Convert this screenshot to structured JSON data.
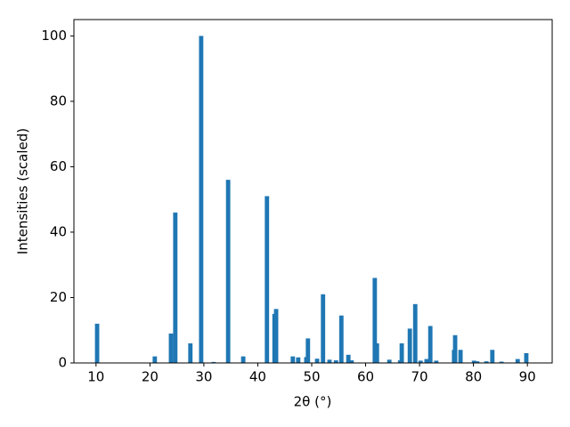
{
  "chart_data": {
    "type": "bar",
    "x_label": "2θ (°)",
    "y_label": "Intensities (scaled)",
    "color": "#1f77b4",
    "x": [
      10.2,
      20.9,
      23.9,
      24.7,
      27.5,
      29.5,
      31.8,
      34.5,
      37.3,
      41.7,
      43.1,
      43.4,
      46.5,
      47.5,
      49.0,
      49.3,
      51.0,
      52.1,
      53.3,
      54.5,
      55.5,
      56.8,
      57.4,
      61.7,
      62.1,
      64.4,
      66.4,
      66.7,
      68.2,
      69.2,
      70.2,
      71.3,
      72.0,
      73.1,
      76.4,
      76.6,
      77.6,
      80.1,
      80.7,
      82.4,
      83.5,
      85.2,
      88.2,
      89.8
    ],
    "values": [
      12,
      2,
      9,
      46,
      6,
      100,
      0.3,
      56,
      2,
      51,
      15,
      16.5,
      2,
      1.7,
      1.8,
      7.5,
      1.3,
      21,
      1,
      0.8,
      14.5,
      2.5,
      0.8,
      26,
      6,
      1,
      0.8,
      6,
      10.5,
      18,
      0.7,
      1.2,
      11.3,
      0.7,
      4,
      8.5,
      4,
      0.7,
      0.5,
      0.5,
      4,
      0.4,
      1.2,
      3
    ],
    "xlim": [
      5.9,
      94.6
    ],
    "ylim": [
      0,
      105
    ],
    "xticks": [
      10,
      20,
      30,
      40,
      50,
      60,
      70,
      80,
      90
    ],
    "yticks": [
      0,
      20,
      40,
      60,
      80,
      100
    ]
  }
}
